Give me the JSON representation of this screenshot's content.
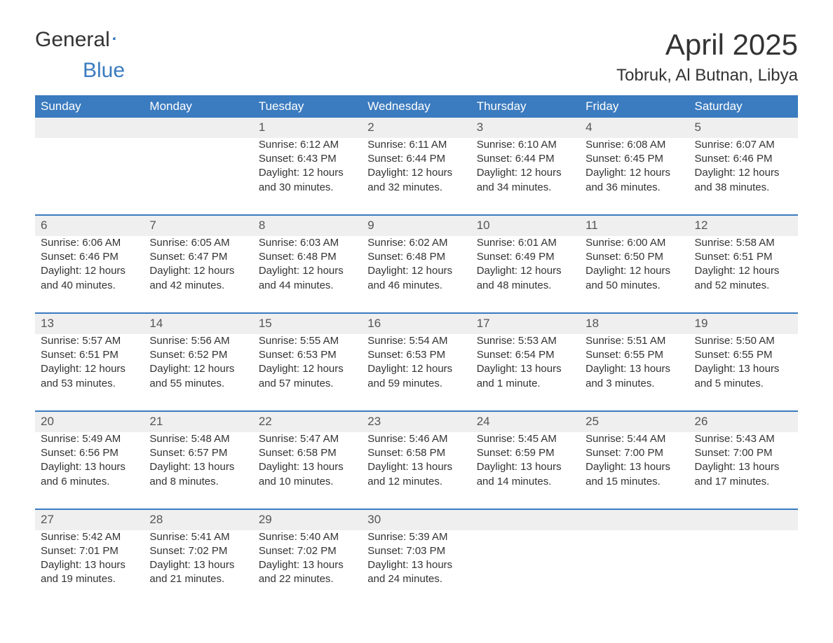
{
  "logo": {
    "line1": "General",
    "line2": "Blue"
  },
  "title": "April 2025",
  "location": "Tobruk, Al Butnan, Libya",
  "colors": {
    "header_bg": "#3b7bbf",
    "header_fg": "#ffffff",
    "stripe_bg": "#efefef",
    "accent": "#3b7bbf",
    "text": "#333333"
  },
  "typography": {
    "title_fontsize": 42,
    "location_fontsize": 24,
    "header_fontsize": 17,
    "body_fontsize": 15
  },
  "layout": {
    "columns": 7,
    "weeks": 5,
    "aspect_width": 1188,
    "aspect_height": 918
  },
  "headers": [
    "Sunday",
    "Monday",
    "Tuesday",
    "Wednesday",
    "Thursday",
    "Friday",
    "Saturday"
  ],
  "weeks": [
    [
      null,
      null,
      {
        "day": "1",
        "sunrise": "6:12 AM",
        "sunset": "6:43 PM",
        "daylight": "12 hours and 30 minutes."
      },
      {
        "day": "2",
        "sunrise": "6:11 AM",
        "sunset": "6:44 PM",
        "daylight": "12 hours and 32 minutes."
      },
      {
        "day": "3",
        "sunrise": "6:10 AM",
        "sunset": "6:44 PM",
        "daylight": "12 hours and 34 minutes."
      },
      {
        "day": "4",
        "sunrise": "6:08 AM",
        "sunset": "6:45 PM",
        "daylight": "12 hours and 36 minutes."
      },
      {
        "day": "5",
        "sunrise": "6:07 AM",
        "sunset": "6:46 PM",
        "daylight": "12 hours and 38 minutes."
      }
    ],
    [
      {
        "day": "6",
        "sunrise": "6:06 AM",
        "sunset": "6:46 PM",
        "daylight": "12 hours and 40 minutes."
      },
      {
        "day": "7",
        "sunrise": "6:05 AM",
        "sunset": "6:47 PM",
        "daylight": "12 hours and 42 minutes."
      },
      {
        "day": "8",
        "sunrise": "6:03 AM",
        "sunset": "6:48 PM",
        "daylight": "12 hours and 44 minutes."
      },
      {
        "day": "9",
        "sunrise": "6:02 AM",
        "sunset": "6:48 PM",
        "daylight": "12 hours and 46 minutes."
      },
      {
        "day": "10",
        "sunrise": "6:01 AM",
        "sunset": "6:49 PM",
        "daylight": "12 hours and 48 minutes."
      },
      {
        "day": "11",
        "sunrise": "6:00 AM",
        "sunset": "6:50 PM",
        "daylight": "12 hours and 50 minutes."
      },
      {
        "day": "12",
        "sunrise": "5:58 AM",
        "sunset": "6:51 PM",
        "daylight": "12 hours and 52 minutes."
      }
    ],
    [
      {
        "day": "13",
        "sunrise": "5:57 AM",
        "sunset": "6:51 PM",
        "daylight": "12 hours and 53 minutes."
      },
      {
        "day": "14",
        "sunrise": "5:56 AM",
        "sunset": "6:52 PM",
        "daylight": "12 hours and 55 minutes."
      },
      {
        "day": "15",
        "sunrise": "5:55 AM",
        "sunset": "6:53 PM",
        "daylight": "12 hours and 57 minutes."
      },
      {
        "day": "16",
        "sunrise": "5:54 AM",
        "sunset": "6:53 PM",
        "daylight": "12 hours and 59 minutes."
      },
      {
        "day": "17",
        "sunrise": "5:53 AM",
        "sunset": "6:54 PM",
        "daylight": "13 hours and 1 minute."
      },
      {
        "day": "18",
        "sunrise": "5:51 AM",
        "sunset": "6:55 PM",
        "daylight": "13 hours and 3 minutes."
      },
      {
        "day": "19",
        "sunrise": "5:50 AM",
        "sunset": "6:55 PM",
        "daylight": "13 hours and 5 minutes."
      }
    ],
    [
      {
        "day": "20",
        "sunrise": "5:49 AM",
        "sunset": "6:56 PM",
        "daylight": "13 hours and 6 minutes."
      },
      {
        "day": "21",
        "sunrise": "5:48 AM",
        "sunset": "6:57 PM",
        "daylight": "13 hours and 8 minutes."
      },
      {
        "day": "22",
        "sunrise": "5:47 AM",
        "sunset": "6:58 PM",
        "daylight": "13 hours and 10 minutes."
      },
      {
        "day": "23",
        "sunrise": "5:46 AM",
        "sunset": "6:58 PM",
        "daylight": "13 hours and 12 minutes."
      },
      {
        "day": "24",
        "sunrise": "5:45 AM",
        "sunset": "6:59 PM",
        "daylight": "13 hours and 14 minutes."
      },
      {
        "day": "25",
        "sunrise": "5:44 AM",
        "sunset": "7:00 PM",
        "daylight": "13 hours and 15 minutes."
      },
      {
        "day": "26",
        "sunrise": "5:43 AM",
        "sunset": "7:00 PM",
        "daylight": "13 hours and 17 minutes."
      }
    ],
    [
      {
        "day": "27",
        "sunrise": "5:42 AM",
        "sunset": "7:01 PM",
        "daylight": "13 hours and 19 minutes."
      },
      {
        "day": "28",
        "sunrise": "5:41 AM",
        "sunset": "7:02 PM",
        "daylight": "13 hours and 21 minutes."
      },
      {
        "day": "29",
        "sunrise": "5:40 AM",
        "sunset": "7:02 PM",
        "daylight": "13 hours and 22 minutes."
      },
      {
        "day": "30",
        "sunrise": "5:39 AM",
        "sunset": "7:03 PM",
        "daylight": "13 hours and 24 minutes."
      },
      null,
      null,
      null
    ]
  ],
  "labels": {
    "sunrise": "Sunrise: ",
    "sunset": "Sunset: ",
    "daylight": "Daylight: "
  }
}
